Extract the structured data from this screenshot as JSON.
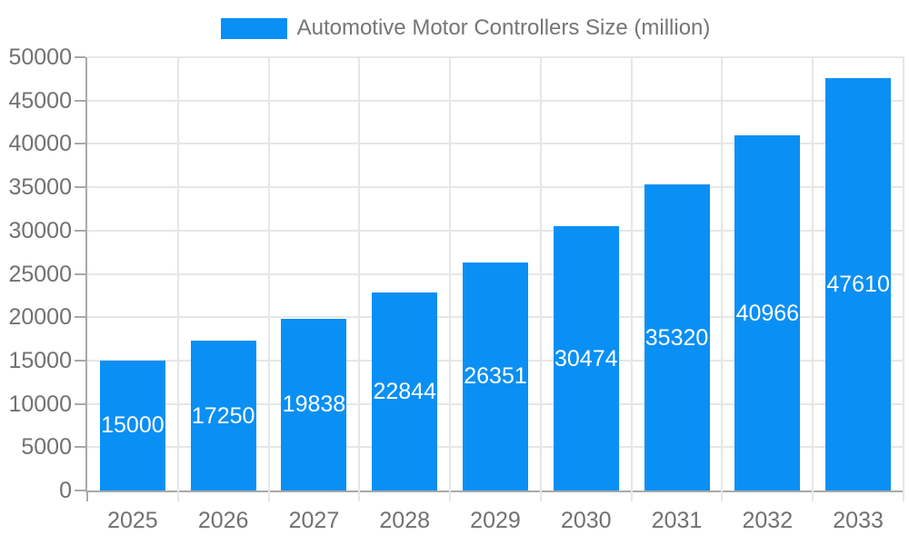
{
  "chart_data": {
    "type": "bar",
    "title": "Automotive Motor Controllers Size (million)",
    "categories": [
      "2025",
      "2026",
      "2027",
      "2028",
      "2029",
      "2030",
      "2031",
      "2032",
      "2033"
    ],
    "values": [
      15000,
      17250,
      19838,
      22844,
      26351,
      30474,
      35320,
      40966,
      47610
    ],
    "xlabel": "",
    "ylabel": "",
    "ylim": [
      0,
      50000
    ],
    "yticks": [
      0,
      5000,
      10000,
      15000,
      20000,
      25000,
      30000,
      35000,
      40000,
      45000,
      50000
    ],
    "grid": true,
    "legend_position": "top",
    "value_labels_inside_bars": true,
    "colors": {
      "bar": "#0a8ff5",
      "axis": "#a9a9a9",
      "grid": "#e6e6e6",
      "tick_label": "#717171",
      "legend_text": "#757575",
      "value_label": "#ffffff",
      "background": "#ffffff"
    }
  }
}
